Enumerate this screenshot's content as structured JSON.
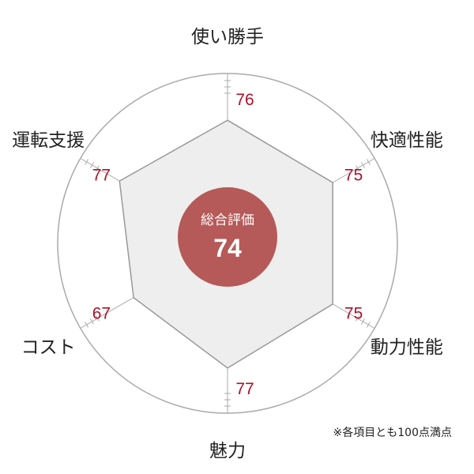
{
  "chart_data": {
    "type": "radar",
    "scale_max": 100,
    "categories": [
      "使い勝手",
      "快適性能",
      "動力性能",
      "魅力",
      "コスト",
      "運転支援"
    ],
    "values": [
      76,
      75,
      75,
      77,
      67,
      77
    ],
    "value_labels": [
      "76",
      "75",
      "75",
      "77",
      "67",
      "77"
    ],
    "overall": {
      "title": "総合評価",
      "value": "74"
    },
    "note": "※各項目とも100点満点",
    "colors": {
      "polygon_fill": "#eeeeee",
      "polygon_stroke": "#999999",
      "outline": "#aaaaaa",
      "value_text": "#b0102a",
      "center_circle": "#b55a58"
    }
  }
}
